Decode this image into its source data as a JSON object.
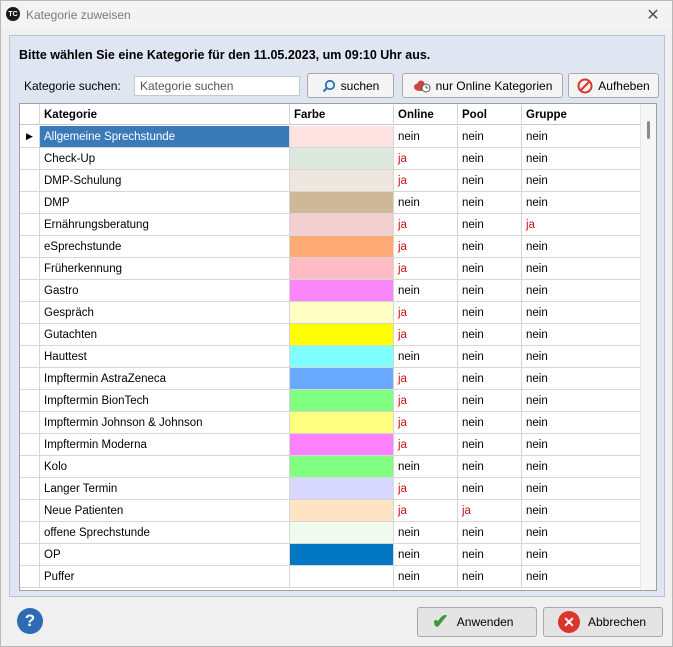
{
  "window": {
    "title": "Kategorie zuweisen",
    "app_icon": "TC"
  },
  "heading": "Bitte wählen Sie eine Kategorie für den 11.05.2023, um 09:10 Uhr aus.",
  "search": {
    "label": "Kategorie suchen:",
    "placeholder": "Kategorie suchen",
    "search_button": "suchen",
    "online_button": "nur Online Kategorien",
    "clear_button": "Aufheben"
  },
  "columns": {
    "kategorie": "Kategorie",
    "farbe": "Farbe",
    "online": "Online",
    "pool": "Pool",
    "gruppe": "Gruppe"
  },
  "rows": [
    {
      "kategorie": "Allgemeine Sprechstunde",
      "farbe": "#fde2e2",
      "online": "nein",
      "pool": "nein",
      "gruppe": "nein"
    },
    {
      "kategorie": "Check-Up",
      "farbe": "#dde9dd",
      "online": "ja",
      "pool": "nein",
      "gruppe": "nein"
    },
    {
      "kategorie": "DMP-Schulung",
      "farbe": "#efe7de",
      "online": "ja",
      "pool": "nein",
      "gruppe": "nein"
    },
    {
      "kategorie": "DMP",
      "farbe": "#cdb898",
      "online": "nein",
      "pool": "nein",
      "gruppe": "nein"
    },
    {
      "kategorie": "Ernährungsberatung",
      "farbe": "#f3cfcf",
      "online": "ja",
      "pool": "nein",
      "gruppe": "ja"
    },
    {
      "kategorie": "eSprechstunde",
      "farbe": "#ffaa74",
      "online": "ja",
      "pool": "nein",
      "gruppe": "nein"
    },
    {
      "kategorie": "Früherkennung",
      "farbe": "#ffbcc4",
      "online": "ja",
      "pool": "nein",
      "gruppe": "nein"
    },
    {
      "kategorie": "Gastro",
      "farbe": "#fa86fa",
      "online": "nein",
      "pool": "nein",
      "gruppe": "nein"
    },
    {
      "kategorie": "Gespräch",
      "farbe": "#ffffc4",
      "online": "ja",
      "pool": "nein",
      "gruppe": "nein"
    },
    {
      "kategorie": "Gutachten",
      "farbe": "#ffff00",
      "online": "ja",
      "pool": "nein",
      "gruppe": "nein"
    },
    {
      "kategorie": "Hauttest",
      "farbe": "#80ffff",
      "online": "nein",
      "pool": "nein",
      "gruppe": "nein"
    },
    {
      "kategorie": "Impftermin AstraZeneca",
      "farbe": "#69aaff",
      "online": "ja",
      "pool": "nein",
      "gruppe": "nein"
    },
    {
      "kategorie": "Impftermin BionTech",
      "farbe": "#80ff80",
      "online": "ja",
      "pool": "nein",
      "gruppe": "nein"
    },
    {
      "kategorie": "Impftermin Johnson & Johnson",
      "farbe": "#ffff80",
      "online": "ja",
      "pool": "nein",
      "gruppe": "nein"
    },
    {
      "kategorie": "Impftermin Moderna",
      "farbe": "#ff80ff",
      "online": "ja",
      "pool": "nein",
      "gruppe": "nein"
    },
    {
      "kategorie": "Kolo",
      "farbe": "#80ff80",
      "online": "nein",
      "pool": "nein",
      "gruppe": "nein"
    },
    {
      "kategorie": "Langer Termin",
      "farbe": "#d8d8ff",
      "online": "ja",
      "pool": "nein",
      "gruppe": "nein"
    },
    {
      "kategorie": "Neue Patienten",
      "farbe": "#ffe4c4",
      "online": "ja",
      "pool": "ja",
      "gruppe": "nein"
    },
    {
      "kategorie": "offene Sprechstunde",
      "farbe": "#f0fbf0",
      "online": "nein",
      "pool": "nein",
      "gruppe": "nein"
    },
    {
      "kategorie": "OP",
      "farbe": "#0077c0",
      "online": "nein",
      "pool": "nein",
      "gruppe": "nein"
    },
    {
      "kategorie": "Puffer",
      "farbe": "#ffffff",
      "online": "nein",
      "pool": "nein",
      "gruppe": "nein"
    }
  ],
  "buttons": {
    "apply": "Anwenden",
    "cancel": "Abbrechen",
    "help": "?"
  },
  "colors": {
    "selected_row": "#3a7ab9",
    "ja_text": "#d01010"
  }
}
